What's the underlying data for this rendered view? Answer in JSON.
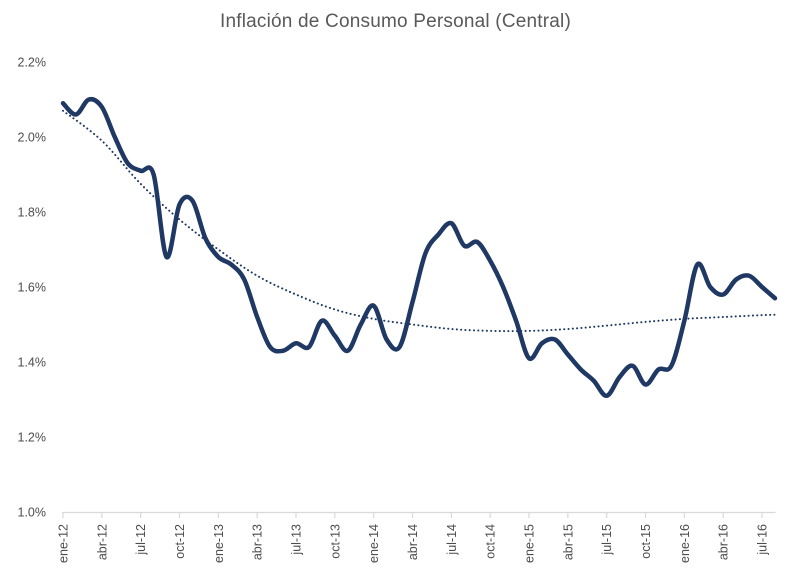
{
  "chart_data": {
    "type": "line",
    "title": "Inflación de Consumo Personal (Central)",
    "x_tick_labels": [
      "ene-12",
      "abr-12",
      "jul-12",
      "oct-12",
      "ene-13",
      "abr-13",
      "jul-13",
      "oct-13",
      "ene-14",
      "abr-14",
      "jul-14",
      "oct-14",
      "ene-15",
      "abr-15",
      "jul-15",
      "oct-15",
      "ene-16",
      "abr-16",
      "jul-16"
    ],
    "y_tick_labels": [
      "2.2%",
      "2.0%",
      "1.8%",
      "1.6%",
      "1.4%",
      "1.2%",
      "1.0%"
    ],
    "y_ticks": [
      2.2,
      2.0,
      1.8,
      1.6,
      1.4,
      1.2,
      1.0
    ],
    "ylim": [
      1.0,
      2.2
    ],
    "x_range_months": 55,
    "x_start": "ene-12",
    "x_end": "ago-16",
    "frequency": "monthly",
    "grid": "off",
    "legend": "none",
    "series": [
      {
        "name": "Inflación de Consumo Personal (Central)",
        "style": "solid",
        "x_month_offsets": [
          0,
          1,
          2,
          3,
          4,
          5,
          6,
          7,
          8,
          9,
          10,
          11,
          12,
          13,
          14,
          15,
          16,
          17,
          18,
          19,
          20,
          21,
          22,
          23,
          24,
          25,
          26,
          27,
          28,
          29,
          30,
          31,
          32,
          33,
          34,
          35,
          36,
          37,
          38,
          39,
          40,
          41,
          42,
          43,
          44,
          45,
          46,
          47,
          48,
          49,
          50,
          51,
          52,
          53,
          54,
          55
        ],
        "values_pct": [
          2.09,
          2.06,
          2.1,
          2.08,
          2.0,
          1.93,
          1.91,
          1.9,
          1.68,
          1.82,
          1.83,
          1.73,
          1.68,
          1.66,
          1.62,
          1.52,
          1.44,
          1.43,
          1.45,
          1.44,
          1.51,
          1.47,
          1.43,
          1.5,
          1.55,
          1.46,
          1.44,
          1.56,
          1.69,
          1.74,
          1.77,
          1.71,
          1.72,
          1.67,
          1.6,
          1.51,
          1.41,
          1.45,
          1.46,
          1.42,
          1.38,
          1.35,
          1.31,
          1.36,
          1.39,
          1.34,
          1.38,
          1.39,
          1.51,
          1.66,
          1.6,
          1.58,
          1.62,
          1.63,
          1.6,
          1.57
        ]
      },
      {
        "name": "Tendencia (línea punteada)",
        "style": "dotted",
        "x_month_offsets": [
          0,
          3,
          6,
          9,
          12,
          15,
          18,
          21,
          24,
          27,
          30,
          33,
          36,
          39,
          42,
          45,
          48,
          51,
          54,
          55
        ],
        "values_pct": [
          2.07,
          1.99,
          1.875,
          1.78,
          1.7,
          1.63,
          1.58,
          1.54,
          1.515,
          1.5,
          1.488,
          1.483,
          1.483,
          1.488,
          1.497,
          1.507,
          1.515,
          1.52,
          1.525,
          1.526
        ]
      }
    ],
    "colors": {
      "line": "#1f3864",
      "trendline": "#1f3864",
      "axis_line": "#d9d9d9",
      "tick_mark": "#d9d9d9",
      "axis_label": "#4d4d4d",
      "title": "#595959",
      "background": "#ffffff"
    }
  }
}
